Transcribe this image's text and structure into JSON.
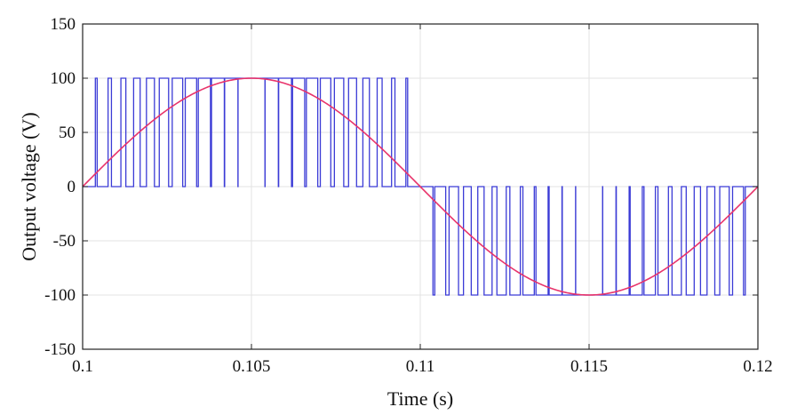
{
  "chart_data": {
    "type": "line",
    "title": "",
    "xlabel": "Time (s)",
    "ylabel": "Output voltage (V)",
    "xlim": [
      0.1,
      0.12
    ],
    "ylim": [
      -150,
      150
    ],
    "x_ticks": [
      0.1,
      0.105,
      0.11,
      0.115,
      0.12
    ],
    "x_tick_labels": [
      "0.1",
      "0.105",
      "0.11",
      "0.115",
      "0.12"
    ],
    "y_ticks": [
      150,
      100,
      50,
      0,
      -50,
      -100,
      -150
    ],
    "y_tick_labels": [
      "150",
      "100",
      "50",
      "0",
      "-50",
      "-100",
      "-150"
    ],
    "grid": true,
    "series": [
      {
        "style": "pwm-unipolar",
        "color": "#3b3bd6",
        "amplitude": 100,
        "fundamental_hz": 50,
        "switching_hz": 2500,
        "t_start": 0.1,
        "t_end": 0.12
      },
      {
        "style": "sine",
        "color": "#e8336b",
        "amplitude": 100,
        "frequency_hz": 50,
        "t_start": 0.1,
        "t_end": 0.12
      }
    ]
  }
}
